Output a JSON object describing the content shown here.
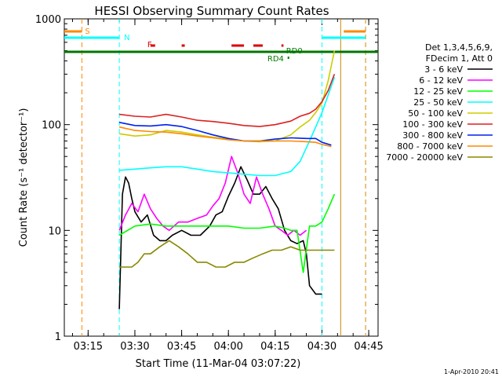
{
  "chart_data": {
    "type": "line",
    "title": "HESSI Observing Summary Count Rates",
    "xlabel": "Start Time (11-Mar-04 03:07:22)",
    "ylabel": "Count Rate (s⁻¹ detector⁻¹)",
    "y_scale": "log",
    "ylim": [
      1,
      1000
    ],
    "xlim": [
      "03:07:22",
      "04:48:00"
    ],
    "grid": false,
    "legend_position": "right",
    "legend_header": [
      "Det 1,3,4,5,6,9,",
      "FDecim 1, Att 0"
    ],
    "footer": "1-Apr-2010 20:41",
    "y_ticks": [
      {
        "value": 1,
        "label": "1"
      },
      {
        "value": 10,
        "label": "10"
      },
      {
        "value": 100,
        "label": "100"
      },
      {
        "value": 1000,
        "label": "1000"
      }
    ],
    "x_ticks": [
      {
        "time": "03:15",
        "label": "03:15"
      },
      {
        "time": "03:30",
        "label": "03:30"
      },
      {
        "time": "03:45",
        "label": "03:45"
      },
      {
        "time": "04:00",
        "label": "04:00"
      },
      {
        "time": "04:15",
        "label": "04:15"
      },
      {
        "time": "04:30",
        "label": "04:30"
      },
      {
        "time": "04:45",
        "label": "04:45"
      }
    ],
    "series": [
      {
        "name": "3 - 6 keV",
        "color": "#000000",
        "x": [
          "03:25:00",
          "03:26:00",
          "03:27:00",
          "03:28:00",
          "03:29:00",
          "03:30:00",
          "03:32:00",
          "03:34:00",
          "03:36:00",
          "03:38:00",
          "03:40:00",
          "03:42:00",
          "03:45:00",
          "03:48:00",
          "03:51:00",
          "03:54:00",
          "03:56:00",
          "03:58:00",
          "04:00:00",
          "04:02:00",
          "04:04:00",
          "04:06:00",
          "04:08:00",
          "04:10:00",
          "04:12:00",
          "04:14:00",
          "04:16:00",
          "04:18:00",
          "04:20:00",
          "04:22:00",
          "04:24:00",
          "04:25:00",
          "04:26:00",
          "04:28:00",
          "04:30:00"
        ],
        "values": [
          1.8,
          22,
          32,
          28,
          20,
          15,
          12,
          14,
          9,
          8,
          8,
          9,
          10,
          9,
          9,
          11,
          14,
          15,
          21,
          28,
          40,
          30,
          22,
          22,
          26,
          20,
          16,
          10,
          8,
          7.5,
          8,
          6,
          3,
          2.5,
          2.5
        ]
      },
      {
        "name": "6 - 12 keV",
        "color": "#ff00ff",
        "x": [
          "03:25:00",
          "03:27:00",
          "03:29:00",
          "03:31:00",
          "03:33:00",
          "03:35:00",
          "03:37:00",
          "03:39:00",
          "03:41:00",
          "03:44:00",
          "03:47:00",
          "03:50:00",
          "03:53:00",
          "03:55:00",
          "03:57:00",
          "03:59:00",
          "04:01:00",
          "04:03:00",
          "04:05:00",
          "04:07:00",
          "04:09:00",
          "04:11:00",
          "04:13:00",
          "04:15:00",
          "04:17:00",
          "04:19:00",
          "04:21:00",
          "04:23:00",
          "04:25:00"
        ],
        "values": [
          10,
          14,
          18,
          15,
          22,
          16,
          13,
          11,
          10,
          12,
          12,
          13,
          14,
          17,
          20,
          28,
          50,
          35,
          22,
          18,
          32,
          22,
          16,
          11,
          10,
          9,
          10,
          9,
          10
        ]
      },
      {
        "name": "12 - 25 keV",
        "color": "#00ff00",
        "x": [
          "03:25:00",
          "03:30:00",
          "03:35:00",
          "03:40:00",
          "03:45:00",
          "03:50:00",
          "03:55:00",
          "04:00:00",
          "04:05:00",
          "04:10:00",
          "04:15:00",
          "04:18:00",
          "04:20:00",
          "04:22:00",
          "04:24:00",
          "04:26:00",
          "04:28:00",
          "04:30:00",
          "04:32:00",
          "04:34:00"
        ],
        "values": [
          9,
          11,
          11.5,
          11,
          11,
          11,
          11,
          11,
          10.5,
          10.5,
          11,
          10.5,
          10,
          10,
          4,
          11,
          11,
          12,
          16,
          22
        ]
      },
      {
        "name": "25 - 50 keV",
        "color": "#00ffff",
        "x": [
          "03:25:00",
          "03:30:00",
          "03:35:00",
          "03:40:00",
          "03:45:00",
          "03:50:00",
          "03:55:00",
          "04:00:00",
          "04:05:00",
          "04:10:00",
          "04:15:00",
          "04:20:00",
          "04:23:00",
          "04:26:00",
          "04:28:00",
          "04:30:00",
          "04:32:00",
          "04:34:00"
        ],
        "values": [
          37,
          38,
          39,
          40,
          40,
          38,
          36,
          35,
          34,
          33,
          33,
          36,
          45,
          70,
          95,
          130,
          190,
          280
        ]
      },
      {
        "name": "50 - 100 keV",
        "color": "#cccc00",
        "x": [
          "03:25:00",
          "03:30:00",
          "03:35:00",
          "03:40:00",
          "03:45:00",
          "03:50:00",
          "03:55:00",
          "04:00:00",
          "04:05:00",
          "04:10:00",
          "04:15:00",
          "04:20:00",
          "04:23:00",
          "04:26:00",
          "04:28:00",
          "04:30:00",
          "04:32:00",
          "04:34:00"
        ],
        "values": [
          82,
          78,
          80,
          88,
          85,
          80,
          76,
          73,
          70,
          69,
          70,
          80,
          95,
          110,
          130,
          160,
          260,
          500
        ]
      },
      {
        "name": "100 - 300 keV",
        "color": "#dd2020",
        "x": [
          "03:25:00",
          "03:30:00",
          "03:35:00",
          "03:40:00",
          "03:45:00",
          "03:50:00",
          "03:55:00",
          "04:00:00",
          "04:05:00",
          "04:10:00",
          "04:15:00",
          "04:20:00",
          "04:23:00",
          "04:26:00",
          "04:28:00",
          "04:30:00",
          "04:32:00",
          "04:34:00"
        ],
        "values": [
          125,
          120,
          118,
          125,
          118,
          110,
          107,
          103,
          98,
          96,
          100,
          108,
          120,
          128,
          140,
          165,
          210,
          300
        ]
      },
      {
        "name": "300 - 800 keV",
        "color": "#0020ee",
        "x": [
          "03:25:00",
          "03:30:00",
          "03:35:00",
          "03:40:00",
          "03:45:00",
          "03:50:00",
          "03:55:00",
          "04:00:00",
          "04:05:00",
          "04:10:00",
          "04:15:00",
          "04:20:00",
          "04:25:00",
          "04:28:00",
          "04:30:00",
          "04:33:00"
        ],
        "values": [
          105,
          98,
          97,
          100,
          96,
          88,
          80,
          74,
          70,
          70,
          73,
          75,
          74,
          74,
          68,
          64
        ]
      },
      {
        "name": "800 - 7000 keV",
        "color": "#ff8800",
        "x": [
          "03:25:00",
          "03:30:00",
          "03:35:00",
          "03:40:00",
          "03:45:00",
          "03:50:00",
          "03:55:00",
          "04:00:00",
          "04:05:00",
          "04:10:00",
          "04:15:00",
          "04:20:00",
          "04:25:00",
          "04:28:00",
          "04:30:00",
          "04:33:00"
        ],
        "values": [
          95,
          88,
          86,
          85,
          82,
          78,
          75,
          72,
          70,
          70,
          70,
          70,
          69,
          68,
          65,
          62
        ]
      },
      {
        "name": "7000 - 20000 keV",
        "color": "#888800",
        "x": [
          "03:25:00",
          "03:27:00",
          "03:29:00",
          "03:31:00",
          "03:33:00",
          "03:35:00",
          "03:38:00",
          "03:41:00",
          "03:44:00",
          "03:47:00",
          "03:50:00",
          "03:53:00",
          "03:56:00",
          "03:59:00",
          "04:02:00",
          "04:05:00",
          "04:08:00",
          "04:11:00",
          "04:14:00",
          "04:17:00",
          "04:20:00",
          "04:23:00",
          "04:26:00",
          "04:29:00",
          "04:32:00",
          "04:34:00"
        ],
        "values": [
          4.5,
          4.5,
          4.5,
          5,
          6,
          6,
          7,
          8,
          7,
          6,
          5,
          5,
          4.5,
          4.5,
          5,
          5,
          5.5,
          6,
          6.5,
          6.5,
          7,
          6.5,
          6.5,
          6.5,
          6.5,
          6.5
        ]
      }
    ],
    "flag_labels": {
      "S": "S",
      "N": "N",
      "F": "F",
      "RD0": "RD0",
      "RD4": "RD4"
    }
  }
}
